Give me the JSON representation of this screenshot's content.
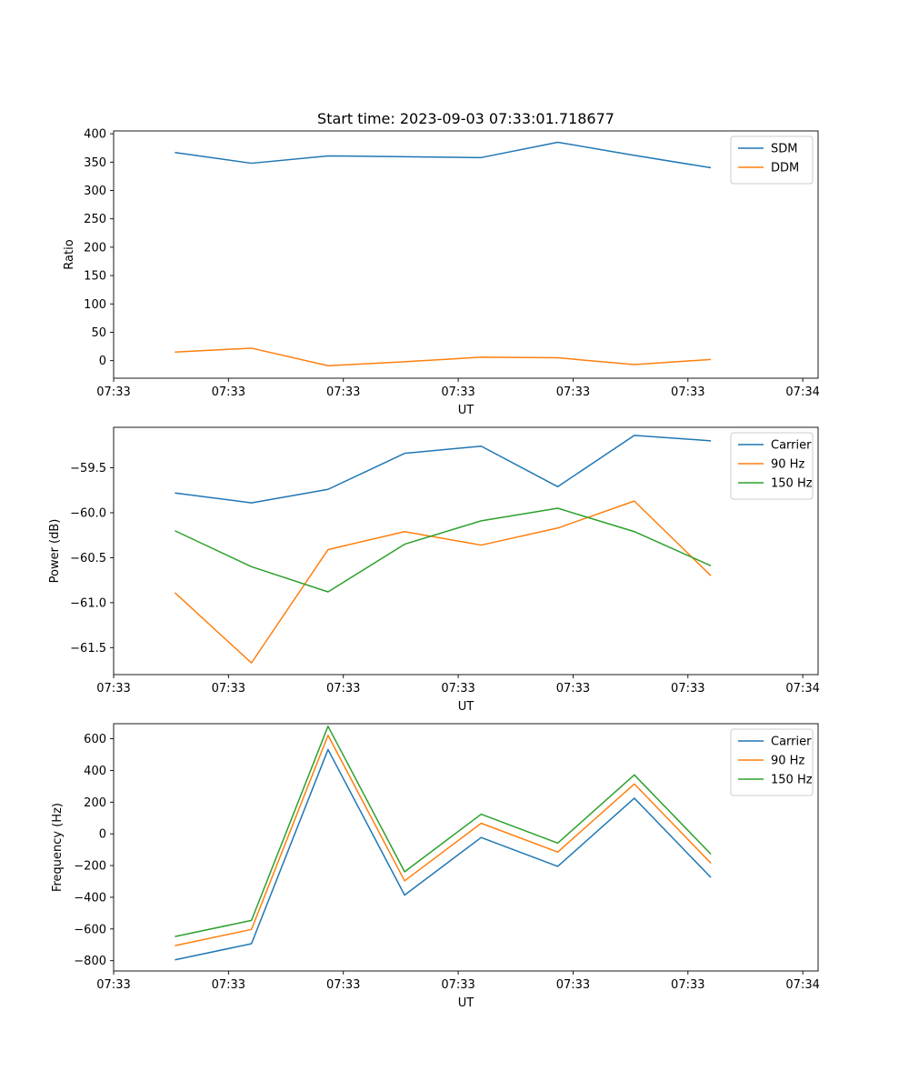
{
  "chart_data": [
    {
      "type": "line",
      "title": "Start time: 2023-09-03 07:33:01.718677",
      "xlabel": "UT",
      "ylabel": "Ratio",
      "x": [
        1,
        2,
        3,
        4,
        5,
        6,
        7,
        8
      ],
      "xlim": [
        0.2,
        9.4
      ],
      "x_tick_positions": [
        0.2,
        1.7,
        3.2,
        4.7,
        6.2,
        7.7,
        9.2
      ],
      "x_tick_labels": [
        "07:33",
        "07:33",
        "07:33",
        "07:33",
        "07:33",
        "07:33",
        "07:34"
      ],
      "ylim": [
        -31,
        405
      ],
      "y_ticks": [
        0,
        50,
        100,
        150,
        200,
        250,
        300,
        350,
        400
      ],
      "y_tick_labels": [
        "0",
        "50",
        "100",
        "150",
        "200",
        "250",
        "300",
        "350",
        "400"
      ],
      "legend_position": "top-right",
      "series": [
        {
          "name": "SDM",
          "color": "#1f77b4",
          "values": [
            367,
            348,
            361,
            359.5,
            358,
            385,
            362,
            340
          ]
        },
        {
          "name": "DDM",
          "color": "#ff7f0e",
          "values": [
            15,
            22,
            -9,
            -2,
            6,
            5,
            -7,
            2
          ]
        }
      ]
    },
    {
      "type": "line",
      "xlabel": "UT",
      "ylabel": "Power (dB)",
      "x": [
        1,
        2,
        3,
        4,
        5,
        6,
        7,
        8
      ],
      "xlim": [
        0.2,
        9.4
      ],
      "x_tick_positions": [
        0.2,
        1.7,
        3.2,
        4.7,
        6.2,
        7.7,
        9.2
      ],
      "x_tick_labels": [
        "07:33",
        "07:33",
        "07:33",
        "07:33",
        "07:33",
        "07:33",
        "07:34"
      ],
      "ylim": [
        -61.8,
        -59.05
      ],
      "y_ticks": [
        -61.5,
        -61.0,
        -60.5,
        -60.0,
        -59.5
      ],
      "y_tick_labels": [
        "−61.5",
        "−61.0",
        "−60.5",
        "−60.0",
        "−59.5"
      ],
      "legend_position": "top-right",
      "series": [
        {
          "name": "Carrier",
          "color": "#1f77b4",
          "values": [
            -59.78,
            -59.89,
            -59.74,
            -59.34,
            -59.26,
            -59.71,
            -59.14,
            -59.2
          ]
        },
        {
          "name": "90 Hz",
          "color": "#ff7f0e",
          "values": [
            -60.89,
            -61.67,
            -60.41,
            -60.21,
            -60.36,
            -60.17,
            -59.87,
            -60.7
          ]
        },
        {
          "name": "150 Hz",
          "color": "#2ca02c",
          "values": [
            -60.2,
            -60.6,
            -60.88,
            -60.35,
            -60.09,
            -59.95,
            -60.21,
            -60.59
          ]
        }
      ]
    },
    {
      "type": "line",
      "xlabel": "UT",
      "ylabel": "Frequency (Hz)",
      "x": [
        1,
        2,
        3,
        4,
        5,
        6,
        7,
        8
      ],
      "xlim": [
        0.2,
        9.4
      ],
      "x_tick_positions": [
        0.2,
        1.7,
        3.2,
        4.7,
        6.2,
        7.7,
        9.2
      ],
      "x_tick_labels": [
        "07:33",
        "07:33",
        "07:33",
        "07:33",
        "07:33",
        "07:33",
        "07:34"
      ],
      "ylim": [
        -865,
        695
      ],
      "y_ticks": [
        -800,
        -600,
        -400,
        -200,
        0,
        200,
        400,
        600
      ],
      "y_tick_labels": [
        "−800",
        "−600",
        "−400",
        "−200",
        "0",
        "200",
        "400",
        "600"
      ],
      "legend_position": "top-right",
      "series": [
        {
          "name": "Carrier",
          "color": "#1f77b4",
          "values": [
            -795,
            -693,
            532,
            -386,
            -23,
            -205,
            225,
            -275
          ]
        },
        {
          "name": "90 Hz",
          "color": "#ff7f0e",
          "values": [
            -705,
            -603,
            622,
            -296,
            67,
            -115,
            315,
            -185
          ]
        },
        {
          "name": "150 Hz",
          "color": "#2ca02c",
          "values": [
            -648,
            -546,
            679,
            -239,
            124,
            -58,
            372,
            -128
          ]
        }
      ]
    }
  ]
}
